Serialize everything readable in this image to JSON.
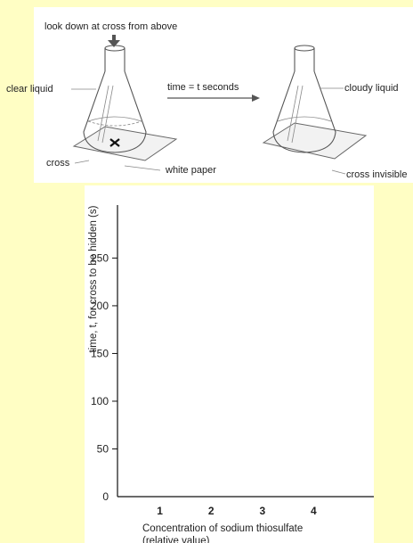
{
  "diagram": {
    "instruction": "look down at cross from above",
    "left_flask_label": "clear liquid",
    "arrow_label": "time = t seconds",
    "right_flask_label": "cloudy liquid",
    "cross_label": "cross",
    "paper_label": "white paper",
    "cross_invisible_label": "cross invisible"
  },
  "chart_data": {
    "type": "line",
    "title": "",
    "xlabel_line1": "Concentration of sodium thiosulfate",
    "xlabel_line2": "(relative value)",
    "ylabel": "time, t, for cross to be hidden (s)",
    "x_ticks": [
      "1",
      "2",
      "3",
      "4"
    ],
    "y_ticks": [
      "0",
      "50",
      "100",
      "150",
      "200",
      "250"
    ],
    "xlim": [
      0,
      5
    ],
    "ylim": [
      0,
      270
    ],
    "series": [],
    "grid": false
  }
}
